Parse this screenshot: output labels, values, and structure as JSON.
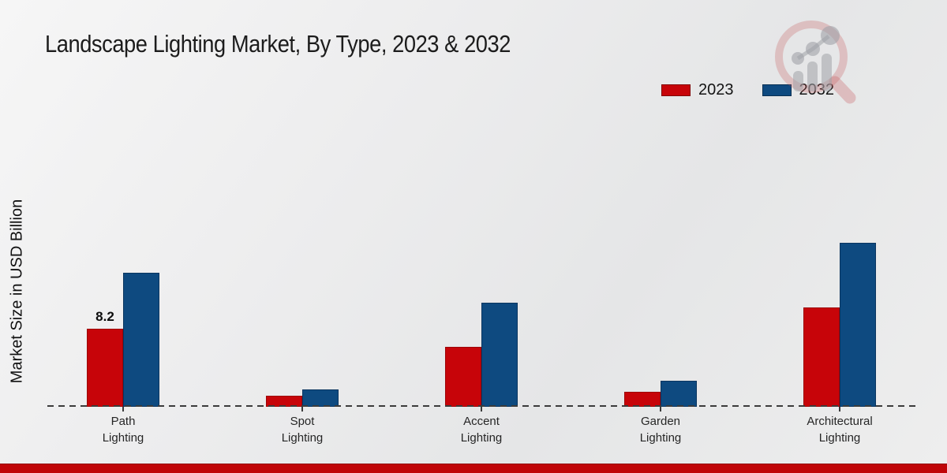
{
  "title": "Landscape Lighting Market, By Type, 2023 & 2032",
  "ylabel": "Market Size in USD Billion",
  "legend": [
    {
      "label": "2023",
      "color": "#c70409",
      "border": "#8e0306"
    },
    {
      "label": "2032",
      "color": "#0e4a80",
      "border": "#093precede"
    }
  ],
  "colors": {
    "series_2023": "#c70409",
    "series_2023_border": "#9c0307",
    "series_2032": "#0e4a80",
    "series_2032_border": "#0a3560",
    "axis": "#3b3b3b",
    "footer_strip": "#c00508",
    "background": "#ebecec"
  },
  "chart_data": {
    "type": "bar",
    "title": "Landscape Lighting Market, By Type, 2023 & 2032",
    "xlabel": "",
    "ylabel": "Market Size in USD Billion",
    "categories": [
      "Path Lighting",
      "Spot Lighting",
      "Accent Lighting",
      "Garden Lighting",
      "Architectural Lighting"
    ],
    "series": [
      {
        "name": "2023",
        "color": "#c70409",
        "border": "#9c0307",
        "values": [
          8.2,
          1.2,
          6.3,
          1.6,
          10.4
        ],
        "point_labels": [
          "8.2",
          "",
          "",
          "",
          ""
        ]
      },
      {
        "name": "2032",
        "color": "#0e4a80",
        "border": "#0a3560",
        "values": [
          14.1,
          1.8,
          10.9,
          2.7,
          17.2
        ],
        "point_labels": [
          "",
          "",
          "",
          "",
          ""
        ]
      }
    ],
    "ylim": [
      0,
      20
    ],
    "grid": false,
    "y_axis_ticks_visible": false,
    "zero_line_style": "dashed",
    "legend_position": "top-right",
    "watermark": "market-research-magnifier-logo"
  }
}
